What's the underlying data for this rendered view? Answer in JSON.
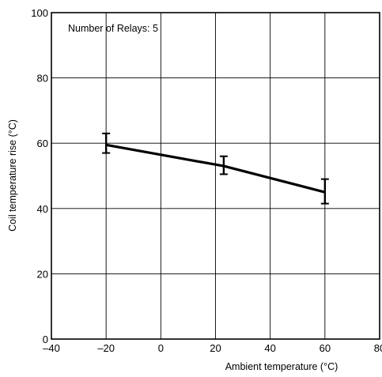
{
  "chart_data": {
    "type": "line",
    "title": "",
    "xlabel": "Ambient temperature (°C)",
    "ylabel": "Coil temperature rise (°C)",
    "xlim": [
      -40,
      80
    ],
    "ylim": [
      0,
      100
    ],
    "x_ticks": [
      -40,
      -20,
      0,
      20,
      40,
      60,
      80
    ],
    "x_tick_labels": [
      "–40",
      "–20",
      "0",
      "20",
      "40",
      "60",
      "80"
    ],
    "y_ticks": [
      0,
      20,
      40,
      60,
      80,
      100
    ],
    "y_tick_labels": [
      "0",
      "20",
      "40",
      "60",
      "80",
      "100"
    ],
    "grid": true,
    "annotation": "Number of Relays: 5",
    "series": [
      {
        "x": [
          -20,
          23,
          60
        ],
        "y": [
          59.5,
          53,
          45
        ],
        "error_low": [
          57,
          50.5,
          41.5
        ],
        "error_high": [
          63,
          56,
          49
        ]
      }
    ],
    "colors": {
      "line": "#000000",
      "grid": "#000000",
      "frame": "#000000"
    }
  }
}
